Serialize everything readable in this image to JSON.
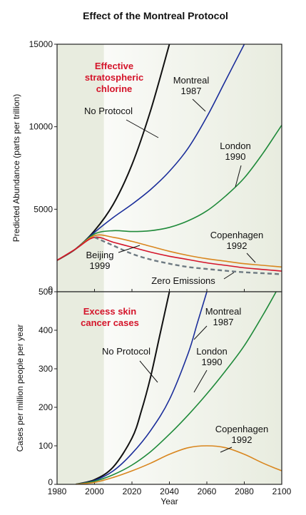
{
  "title": "Effect of the Montreal Protocol",
  "colors": {
    "no_protocol": "#111111",
    "montreal": "#1a2d9a",
    "london": "#1f8a3a",
    "copenhagen": "#d9861e",
    "beijing": "#d4142a",
    "zero": "#6e7a82",
    "heading": "#d4142a",
    "panel_shade": "#e8ecdf"
  },
  "chart_data": [
    {
      "type": "line",
      "title_lines": [
        "Effective",
        "stratospheric",
        "chlorine"
      ],
      "xlabel": "",
      "ylabel": "Predicted Abundance (parts per trillion)",
      "xlim": [
        1980,
        2100
      ],
      "ylim": [
        0,
        15000
      ],
      "yticks": [
        0,
        5000,
        10000,
        15000
      ],
      "shaded_until": 2005,
      "series": [
        {
          "key": "no_protocol",
          "label_lines": [
            "No Protocol"
          ],
          "x": [
            1980,
            1990,
            2000,
            2010,
            2020,
            2030,
            2040
          ],
          "y": [
            1900,
            2600,
            3700,
            5300,
            7700,
            11000,
            15000
          ]
        },
        {
          "key": "montreal",
          "label_lines": [
            "Montreal",
            "1987"
          ],
          "x": [
            1980,
            1990,
            2000,
            2010,
            2020,
            2030,
            2040,
            2050,
            2060,
            2070,
            2080
          ],
          "y": [
            1900,
            2600,
            3600,
            4500,
            5300,
            6200,
            7300,
            8700,
            10600,
            12800,
            15000
          ]
        },
        {
          "key": "london",
          "label_lines": [
            "London",
            "1990"
          ],
          "x": [
            1980,
            1990,
            2000,
            2010,
            2020,
            2030,
            2040,
            2050,
            2060,
            2070,
            2080,
            2090,
            2100
          ],
          "y": [
            1900,
            2600,
            3500,
            3700,
            3650,
            3700,
            3900,
            4300,
            4900,
            5800,
            6900,
            8400,
            10100
          ]
        },
        {
          "key": "copenhagen",
          "label_lines": [
            "Copenhagen",
            "1992"
          ],
          "x": [
            1980,
            1990,
            2000,
            2010,
            2020,
            2030,
            2040,
            2050,
            2060,
            2070,
            2080,
            2090,
            2100
          ],
          "y": [
            1900,
            2600,
            3400,
            3300,
            3050,
            2750,
            2450,
            2200,
            2000,
            1850,
            1700,
            1600,
            1500
          ]
        },
        {
          "key": "beijing",
          "label_lines": [
            "Beijing",
            "1999"
          ],
          "x": [
            1980,
            1990,
            2000,
            2010,
            2020,
            2030,
            2040,
            2050,
            2060,
            2070,
            2080,
            2090,
            2100
          ],
          "y": [
            1900,
            2600,
            3300,
            3000,
            2700,
            2400,
            2150,
            1950,
            1750,
            1600,
            1450,
            1350,
            1250
          ]
        },
        {
          "key": "zero",
          "label_lines": [
            "Zero Emissions"
          ],
          "dashed": true,
          "x": [
            2000,
            2010,
            2020,
            2030,
            2040,
            2050,
            2060,
            2070,
            2080,
            2090,
            2100
          ],
          "y": [
            3300,
            2800,
            2300,
            1950,
            1700,
            1500,
            1380,
            1270,
            1180,
            1120,
            1060
          ]
        }
      ]
    },
    {
      "type": "line",
      "title_lines": [
        "Excess skin",
        "cancer cases"
      ],
      "xlabel": "Year",
      "ylabel": "Cases per million people per year",
      "xlim": [
        1980,
        2100
      ],
      "ylim": [
        0,
        500
      ],
      "yticks": [
        0,
        100,
        200,
        300,
        400,
        500
      ],
      "xticks": [
        1980,
        2000,
        2020,
        2040,
        2060,
        2080,
        2100
      ],
      "shaded_until": 2005,
      "series": [
        {
          "key": "no_protocol",
          "label_lines": [
            "No Protocol"
          ],
          "x": [
            1990,
            2000,
            2010,
            2020,
            2025,
            2030,
            2035,
            2040
          ],
          "y": [
            0,
            12,
            45,
            120,
            190,
            280,
            390,
            500
          ]
        },
        {
          "key": "montreal",
          "label_lines": [
            "Montreal",
            "1987"
          ],
          "x": [
            1990,
            2000,
            2010,
            2020,
            2030,
            2040,
            2050,
            2055,
            2060
          ],
          "y": [
            0,
            10,
            35,
            80,
            140,
            220,
            340,
            420,
            500
          ]
        },
        {
          "key": "london",
          "label_lines": [
            "London",
            "1990"
          ],
          "x": [
            1990,
            2000,
            2010,
            2020,
            2030,
            2040,
            2050,
            2060,
            2070,
            2080,
            2090,
            2097
          ],
          "y": [
            0,
            8,
            25,
            50,
            85,
            130,
            180,
            235,
            295,
            360,
            440,
            500
          ]
        },
        {
          "key": "copenhagen",
          "label_lines": [
            "Copenhagen",
            "1992"
          ],
          "x": [
            1990,
            2000,
            2010,
            2020,
            2030,
            2040,
            2050,
            2060,
            2070,
            2080,
            2090,
            2100
          ],
          "y": [
            0,
            5,
            18,
            35,
            55,
            78,
            95,
            100,
            95,
            78,
            55,
            35
          ]
        }
      ]
    }
  ]
}
